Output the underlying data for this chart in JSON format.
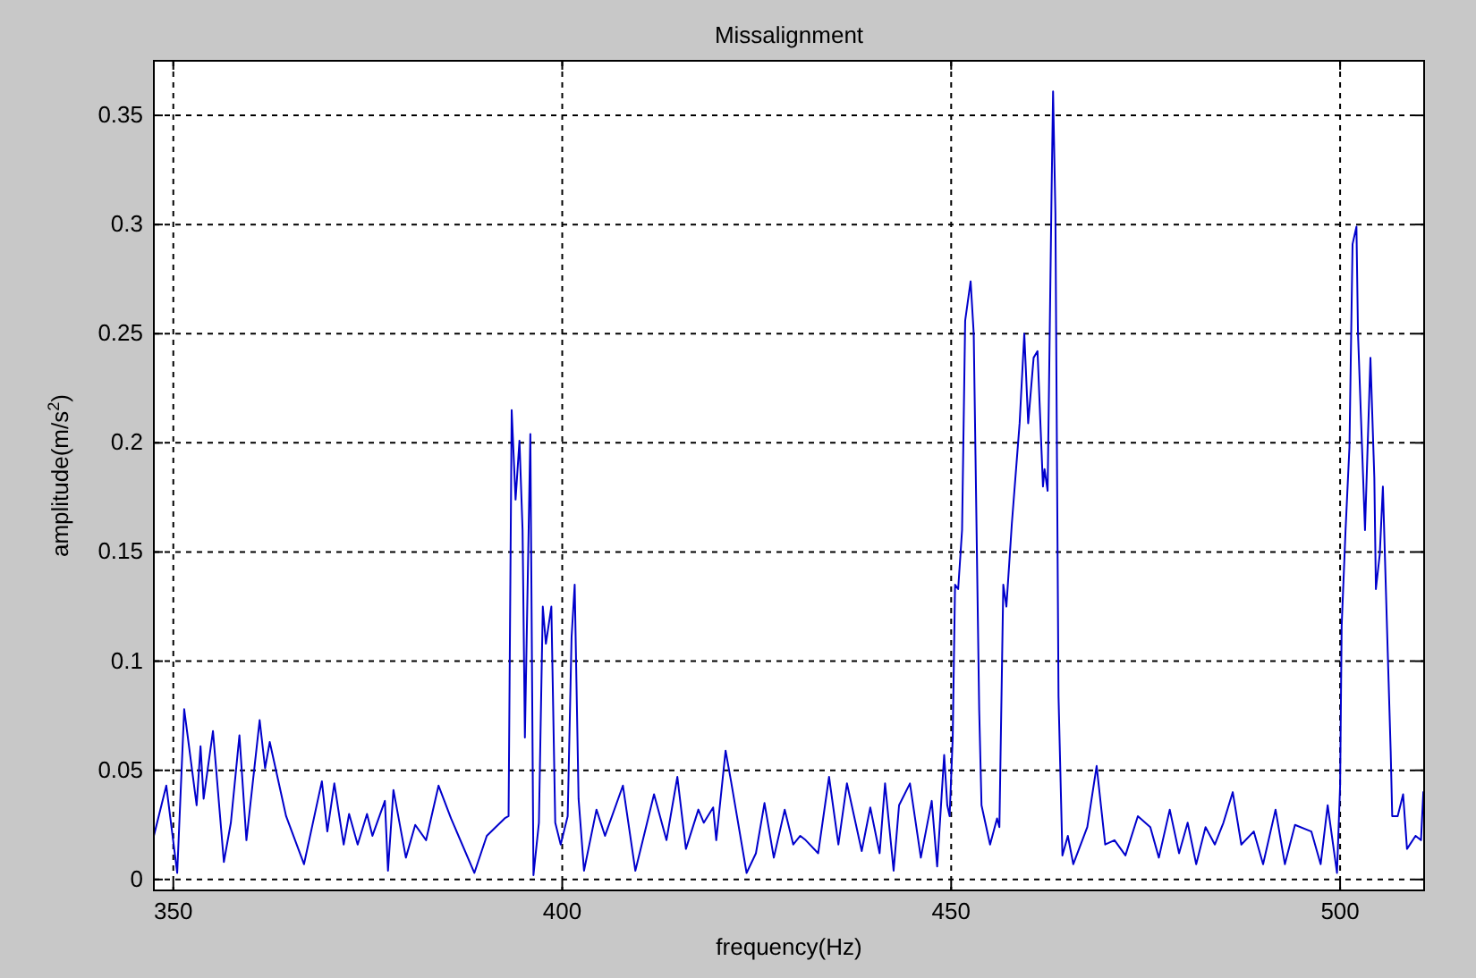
{
  "chart_data": {
    "type": "line",
    "title": "Missalignment",
    "xlabel": "frequency(Hz)",
    "ylabel": "amplitude(m/s$^{2}$)",
    "xlim": [
      347.5,
      510.8
    ],
    "ylim": [
      -0.005,
      0.375
    ],
    "xticks": [
      350,
      400,
      450,
      500
    ],
    "yticks": [
      0,
      0.05,
      0.1,
      0.15,
      0.2,
      0.25,
      0.3,
      0.35
    ],
    "grid": true,
    "line_style": "solid",
    "marker": "none",
    "series": [
      {
        "color": "#0000cc",
        "x": [
          347.5,
          349.1,
          350.5,
          351.4,
          353.0,
          353.5,
          353.9,
          355.1,
          356.5,
          357.4,
          358.5,
          359.4,
          361.1,
          361.8,
          362.4,
          364.5,
          366.8,
          369.1,
          369.8,
          370.7,
          371.9,
          372.6,
          373.7,
          374.9,
          375.6,
          377.2,
          377.6,
          378.3,
          379.9,
          381.1,
          382.5,
          384.1,
          385.7,
          388.7,
          390.3,
          392.6,
          393.1,
          393.5,
          394.0,
          394.5,
          394.9,
          395.2,
          395.9,
          396.3,
          397.0,
          397.5,
          397.9,
          398.6,
          399.1,
          399.8,
          400.7,
          401.2,
          401.6,
          402.1,
          402.8,
          404.4,
          405.5,
          407.8,
          409.4,
          411.8,
          413.4,
          414.8,
          415.9,
          417.5,
          418.2,
          419.4,
          419.8,
          421.0,
          421.7,
          423.7,
          424.9,
          426.0,
          427.2,
          428.6,
          429.7,
          430.6,
          431.3,
          432.9,
          434.3,
          435.5,
          436.6,
          438.5,
          439.6,
          440.8,
          441.5,
          442.6,
          443.3,
          444.7,
          446.1,
          447.5,
          448.2,
          449.1,
          449.5,
          449.8,
          450.2,
          450.5,
          450.9,
          451.4,
          451.8,
          452.5,
          452.9,
          453.6,
          453.9,
          455.0,
          455.9,
          456.2,
          456.7,
          457.1,
          457.8,
          458.8,
          459.4,
          459.9,
          460.6,
          461.1,
          461.8,
          462.0,
          462.4,
          462.9,
          463.1,
          463.4,
          463.6,
          463.8,
          464.3,
          465.0,
          465.7,
          467.5,
          468.7,
          469.8,
          471.0,
          472.4,
          474.0,
          475.6,
          476.7,
          478.1,
          479.3,
          480.4,
          481.5,
          482.7,
          483.9,
          485.0,
          486.2,
          487.3,
          488.9,
          490.1,
          491.7,
          492.9,
          494.2,
          496.3,
          497.5,
          498.4,
          499.6,
          500.0,
          500.2,
          500.7,
          501.2,
          501.6,
          502.1,
          502.3,
          503.2,
          503.9,
          504.4,
          504.6,
          505.1,
          505.5,
          506.0,
          506.5,
          506.7,
          507.4,
          508.1,
          508.6,
          509.7,
          510.4,
          510.7
        ],
        "values": [
          0.02,
          0.043,
          0.003,
          0.078,
          0.034,
          0.061,
          0.037,
          0.068,
          0.008,
          0.026,
          0.066,
          0.018,
          0.073,
          0.051,
          0.063,
          0.029,
          0.007,
          0.045,
          0.022,
          0.044,
          0.016,
          0.03,
          0.016,
          0.03,
          0.02,
          0.036,
          0.004,
          0.041,
          0.01,
          0.025,
          0.018,
          0.043,
          0.028,
          0.003,
          0.02,
          0.028,
          0.029,
          0.215,
          0.174,
          0.201,
          0.16,
          0.065,
          0.204,
          0.002,
          0.026,
          0.125,
          0.108,
          0.125,
          0.026,
          0.016,
          0.029,
          0.111,
          0.135,
          0.037,
          0.004,
          0.032,
          0.02,
          0.043,
          0.004,
          0.039,
          0.018,
          0.047,
          0.014,
          0.032,
          0.026,
          0.033,
          0.018,
          0.059,
          0.045,
          0.003,
          0.012,
          0.035,
          0.01,
          0.032,
          0.016,
          0.02,
          0.018,
          0.012,
          0.047,
          0.016,
          0.044,
          0.013,
          0.033,
          0.012,
          0.044,
          0.004,
          0.034,
          0.044,
          0.01,
          0.036,
          0.006,
          0.057,
          0.034,
          0.029,
          0.065,
          0.135,
          0.133,
          0.16,
          0.256,
          0.274,
          0.25,
          0.078,
          0.034,
          0.016,
          0.028,
          0.024,
          0.135,
          0.125,
          0.163,
          0.209,
          0.25,
          0.209,
          0.239,
          0.242,
          0.18,
          0.188,
          0.178,
          0.313,
          0.361,
          0.305,
          0.193,
          0.084,
          0.011,
          0.02,
          0.007,
          0.024,
          0.052,
          0.016,
          0.018,
          0.011,
          0.029,
          0.024,
          0.01,
          0.032,
          0.012,
          0.026,
          0.007,
          0.024,
          0.016,
          0.026,
          0.04,
          0.016,
          0.022,
          0.007,
          0.032,
          0.007,
          0.025,
          0.022,
          0.007,
          0.034,
          0.003,
          0.043,
          0.116,
          0.16,
          0.198,
          0.291,
          0.299,
          0.25,
          0.16,
          0.239,
          0.184,
          0.133,
          0.149,
          0.18,
          0.119,
          0.059,
          0.029,
          0.029,
          0.039,
          0.014,
          0.02,
          0.018,
          0.04
        ]
      }
    ]
  }
}
